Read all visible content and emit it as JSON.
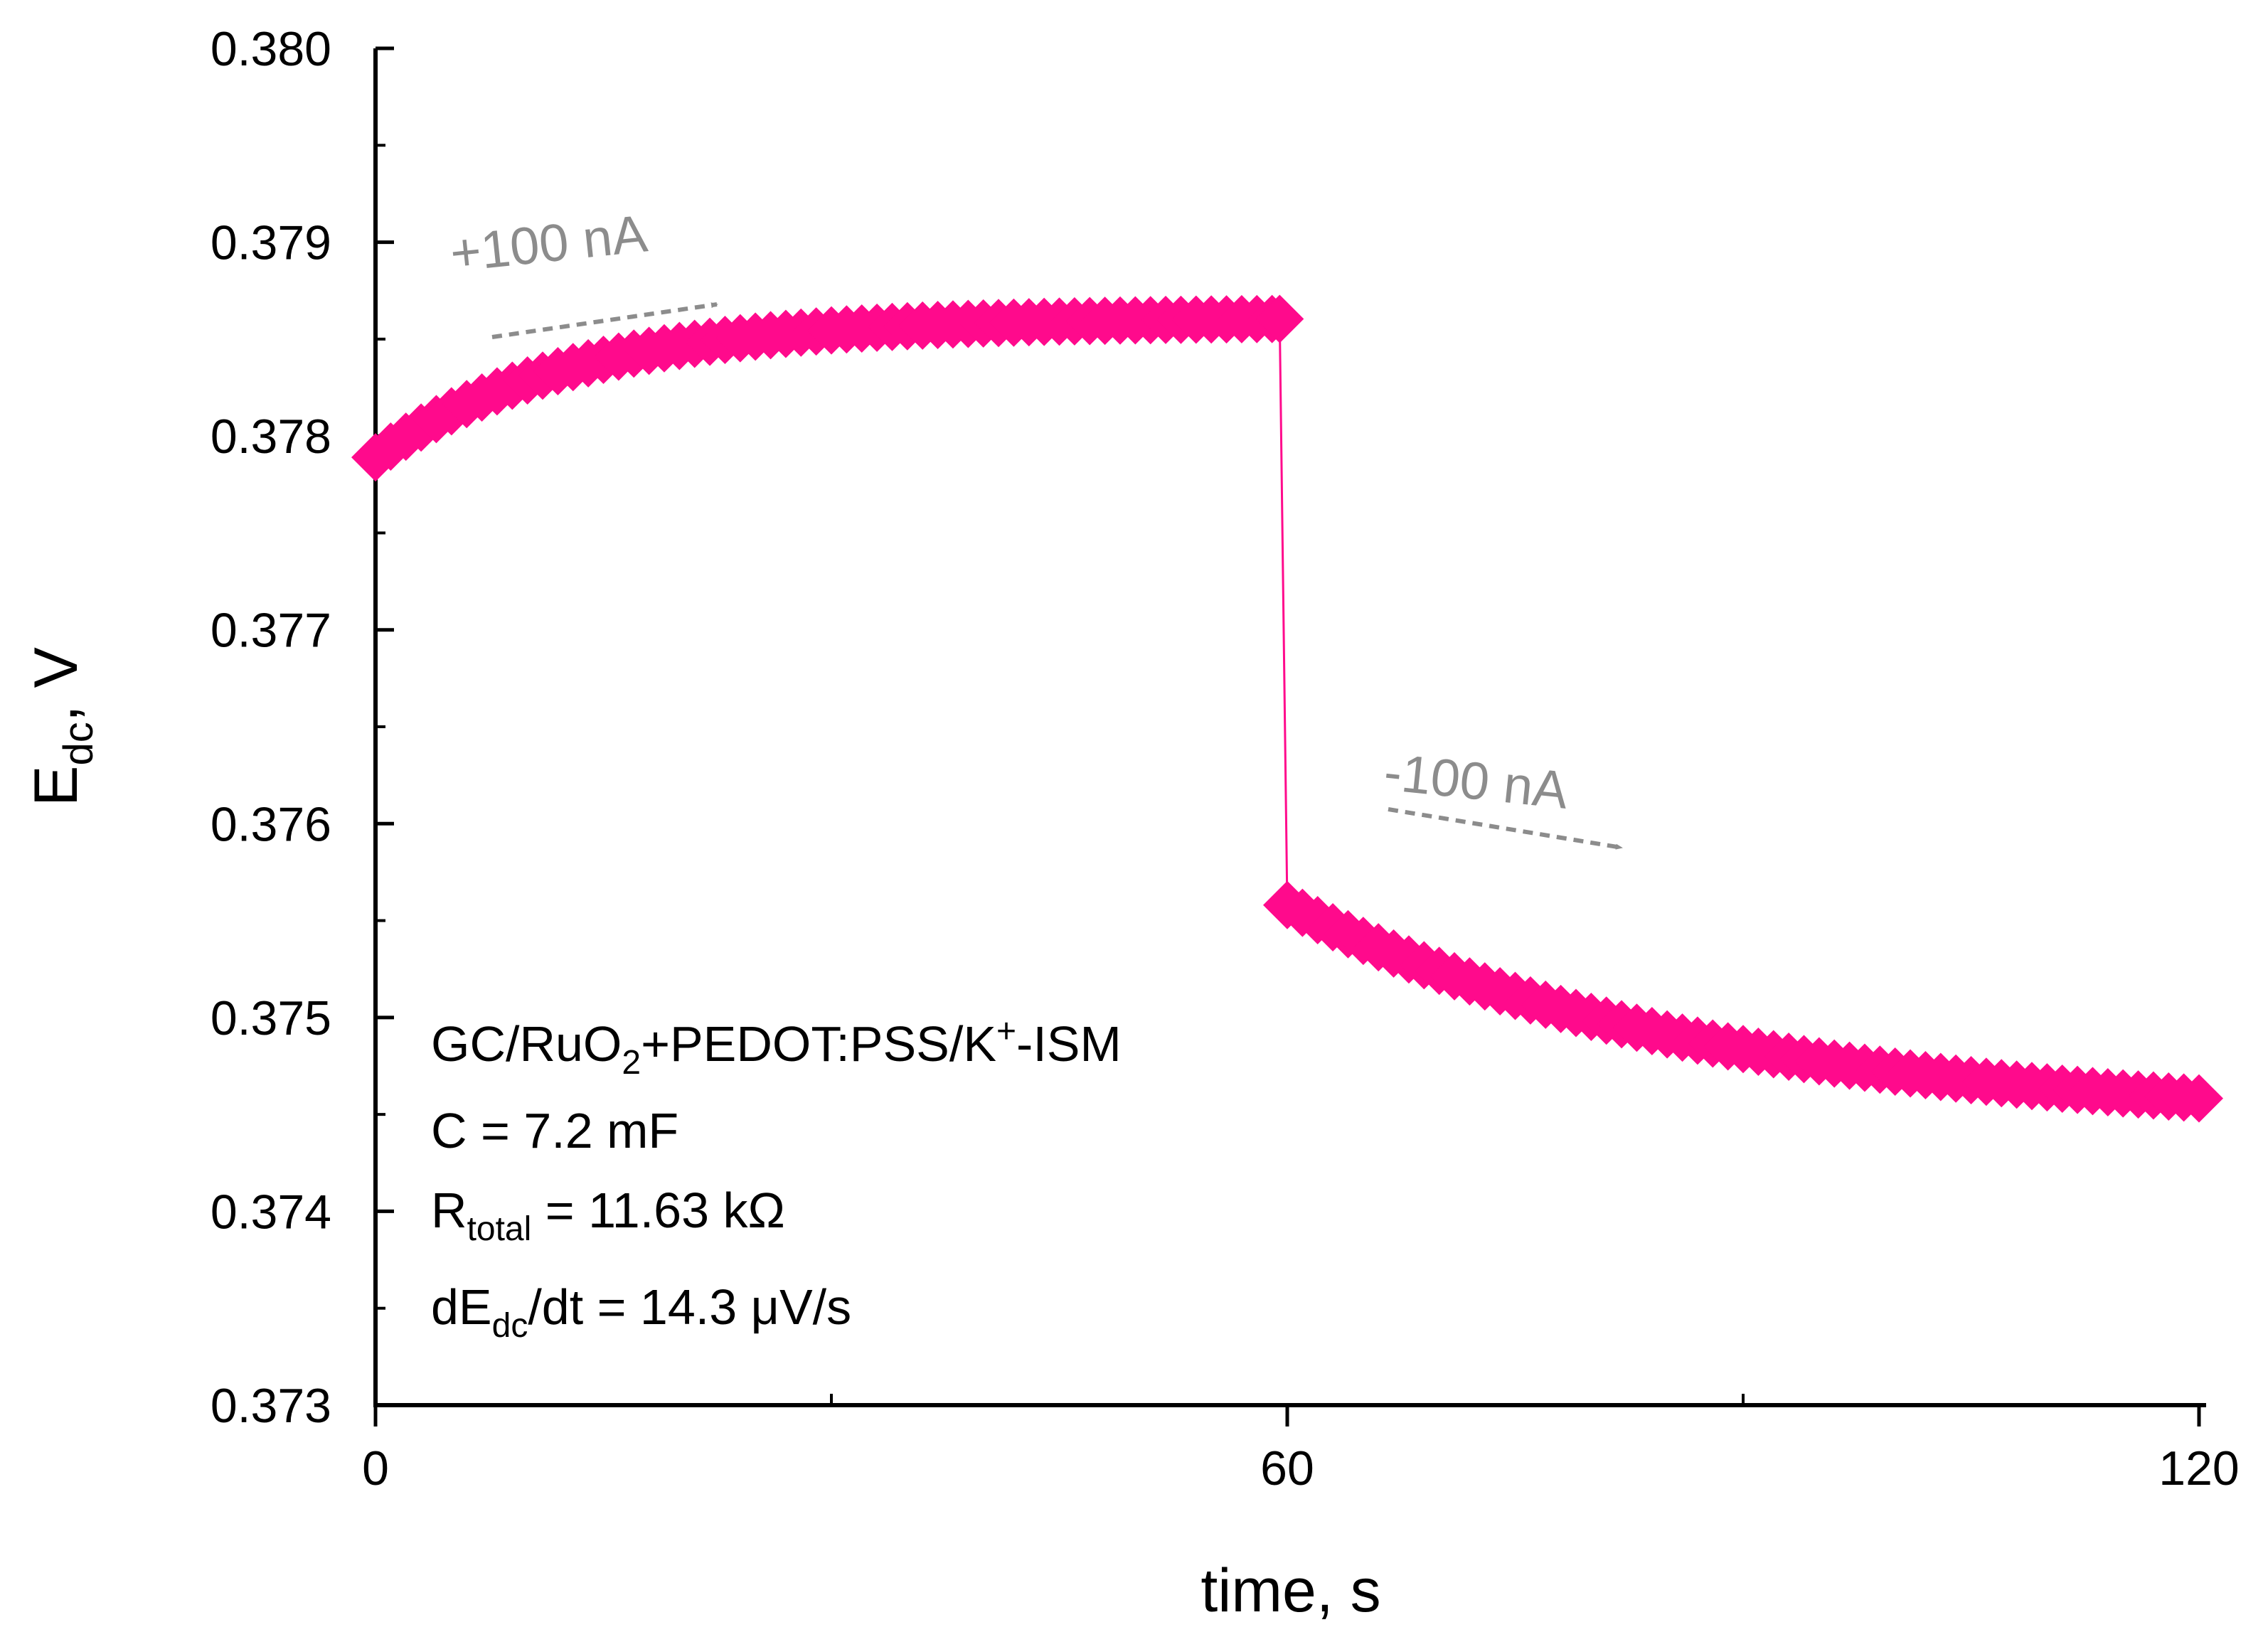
{
  "chart_data": {
    "type": "scatter",
    "xlabel": "time, s",
    "ylabel": {
      "main": "E",
      "sub": "dc",
      "rest": ", V"
    },
    "xlim": [
      0,
      120
    ],
    "ylim": [
      0.373,
      0.38
    ],
    "x_ticks": [
      "0",
      "60",
      "120"
    ],
    "y_ticks": [
      "0.373",
      "0.374",
      "0.375",
      "0.376",
      "0.377",
      "0.378",
      "0.379",
      "0.380"
    ],
    "grid": false,
    "series": [
      {
        "color": "#ff0a8c",
        "marker": "diamond",
        "segments": [
          {
            "t0": 0,
            "t1": 60,
            "y0": 0.37789,
            "y_inf": 0.37861,
            "tau": 12.5,
            "count": 60
          },
          {
            "t0": 60,
            "t1": 120,
            "y0": 0.37558,
            "y_inf": 0.37445,
            "tau": 28,
            "count": 60
          }
        ]
      }
    ],
    "annotations": [
      {
        "text": "+100 nA",
        "color": "#8c8c8c",
        "arrow": "right"
      },
      {
        "text": "-100 nA",
        "color": "#8c8c8c",
        "arrow": "right"
      }
    ],
    "info_box": [
      {
        "pre": "GC/RuO",
        "sub": "2",
        "mid": "+PEDOT:PSS/K",
        "sup": "+",
        "post": "-ISM"
      },
      {
        "pre": "C = 7.2 mF"
      },
      {
        "pre": "R",
        "sub": "total",
        "post": " = 11.63 kΩ"
      },
      {
        "pre": "dE",
        "sub": "dc",
        "post": "/dt = 14.3 μV/s"
      }
    ]
  }
}
